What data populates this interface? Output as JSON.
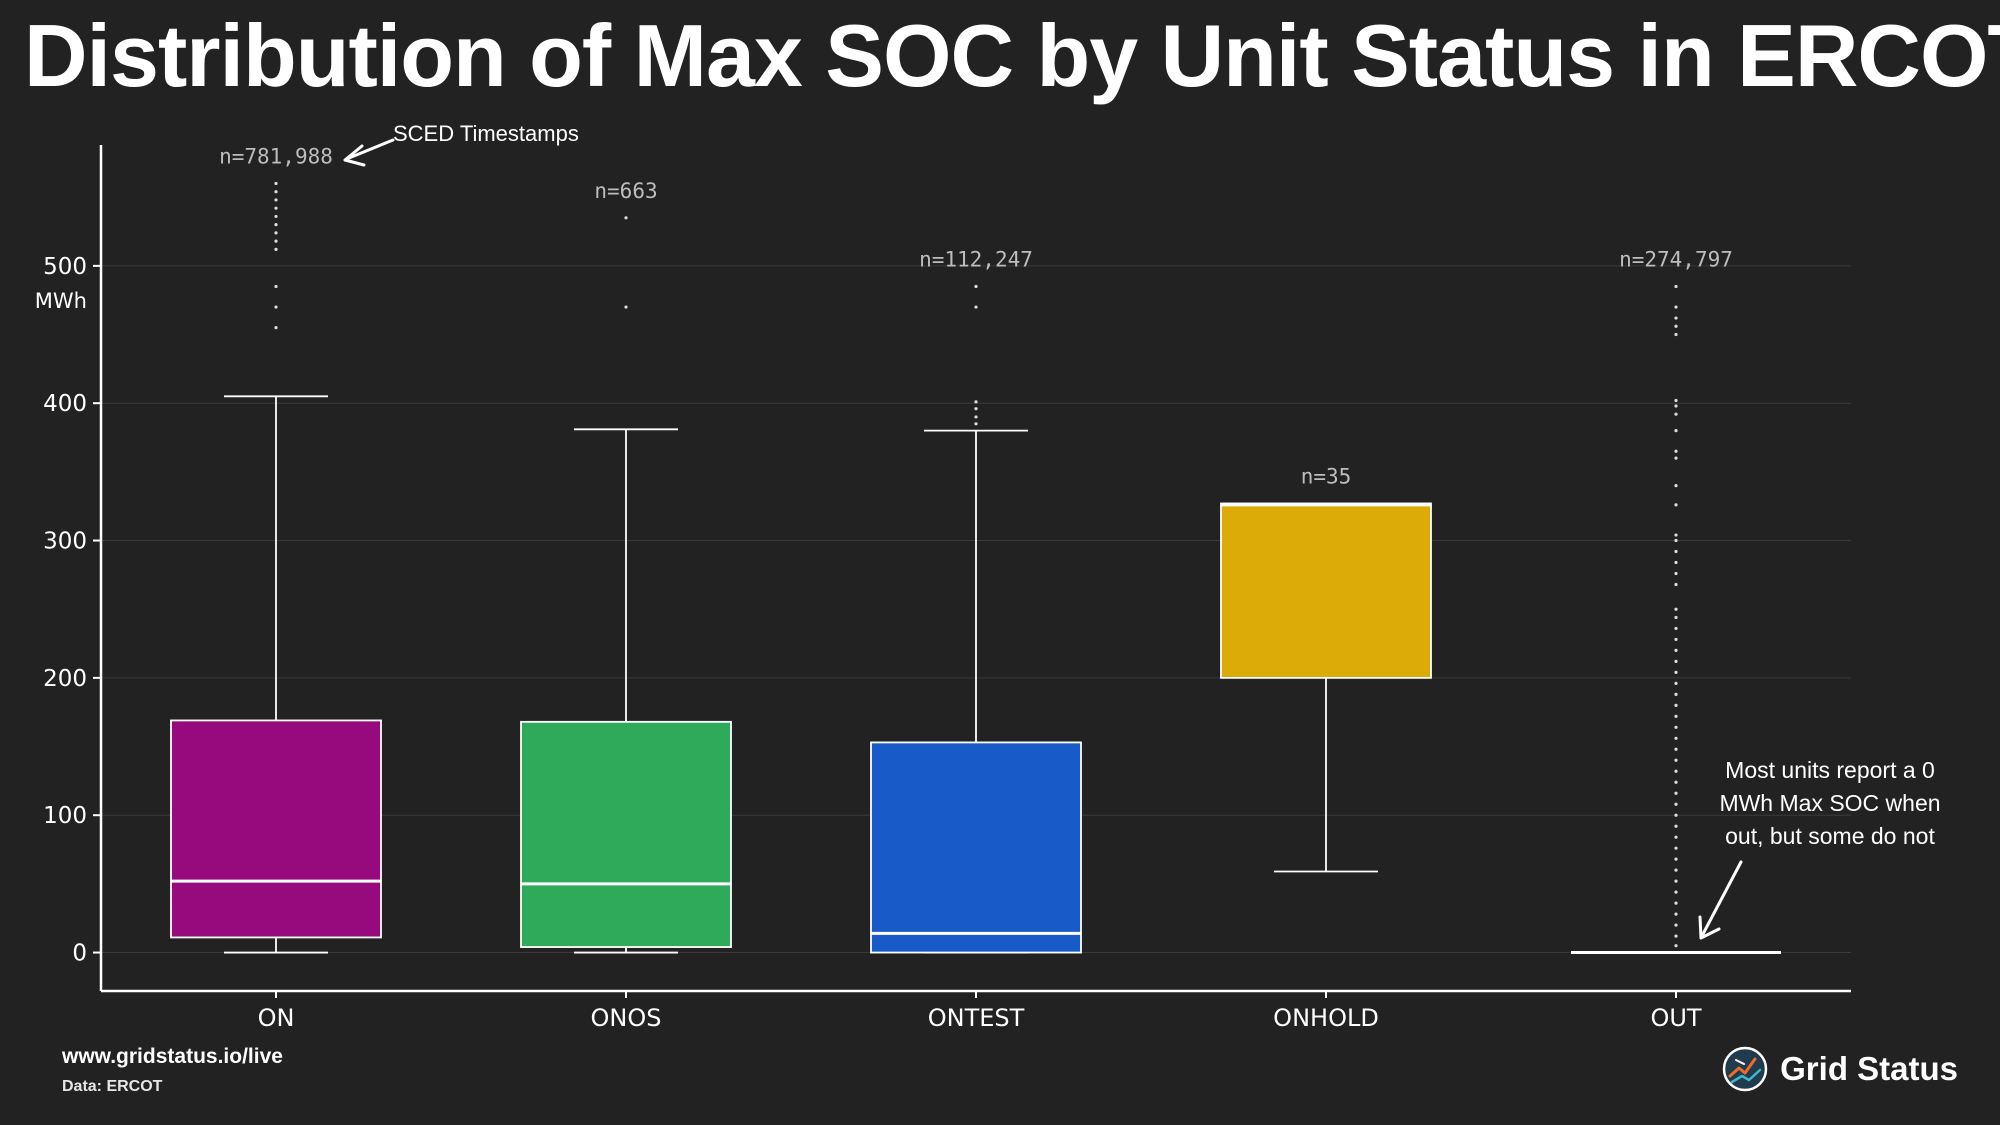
{
  "title": "Distribution of Max SOC by Unit Status in ERCOT",
  "footer": {
    "url": "www.gridstatus.io/live",
    "source": "Data: ERCOT",
    "brand": "Grid Status",
    "logo_icon": "grid-status-logo-icon"
  },
  "colors": {
    "background": "#222222",
    "ON": "#960a7d",
    "ONOS": "#2eaa5a",
    "ONTEST": "#185bc8",
    "ONHOLD": "#dcab07",
    "OUT": "#ffffff"
  },
  "chart_data": {
    "type": "box",
    "ylabel": "MWh",
    "ylim": [
      -28,
      588
    ],
    "yticks": [
      0,
      100,
      200,
      300,
      400,
      500
    ],
    "grid": true,
    "categories": [
      "ON",
      "ONOS",
      "ONTEST",
      "ONHOLD",
      "OUT"
    ],
    "boxes": [
      {
        "category": "ON",
        "n_label": "n=781,988",
        "whisker_low": 0,
        "q1": 11,
        "median": 52,
        "q3": 169,
        "whisker_high": 405,
        "outliers": [
          455,
          470,
          485,
          512,
          518,
          524,
          530,
          536,
          542,
          548,
          554,
          560
        ]
      },
      {
        "category": "ONOS",
        "n_label": "n=663",
        "whisker_low": 0,
        "q1": 4,
        "median": 50,
        "q3": 168,
        "whisker_high": 381,
        "outliers": [
          470,
          535
        ]
      },
      {
        "category": "ONTEST",
        "n_label": "n=112,247",
        "whisker_low": 0,
        "q1": 0,
        "median": 14,
        "q3": 153,
        "whisker_high": 380,
        "outliers": [
          385,
          390,
          396,
          401,
          470,
          485
        ]
      },
      {
        "category": "ONHOLD",
        "n_label": "n=35",
        "whisker_low": 59,
        "q1": 200,
        "median": 326,
        "q3": 327,
        "whisker_high": 327,
        "outliers": []
      },
      {
        "category": "OUT",
        "n_label": "n=274,797",
        "whisker_low": 0,
        "q1": 0,
        "median": 0,
        "q3": 0,
        "whisker_high": 0,
        "outliers": [
          5,
          12,
          20,
          28,
          36,
          44,
          52,
          60,
          68,
          76,
          84,
          92,
          100,
          108,
          116,
          124,
          132,
          140,
          148,
          156,
          164,
          172,
          180,
          188,
          196,
          204,
          212,
          220,
          228,
          236,
          244,
          250,
          268,
          276,
          284,
          292,
          300,
          304,
          326,
          340,
          360,
          365,
          380,
          392,
          398,
          402,
          450,
          456,
          462,
          470,
          485
        ]
      }
    ],
    "annotations": [
      {
        "text": "SCED Timestamps",
        "target": "ON"
      },
      {
        "lines": [
          "Most units report a 0",
          "MWh Max SOC when",
          "out, but some do not"
        ],
        "target": "OUT"
      }
    ]
  }
}
